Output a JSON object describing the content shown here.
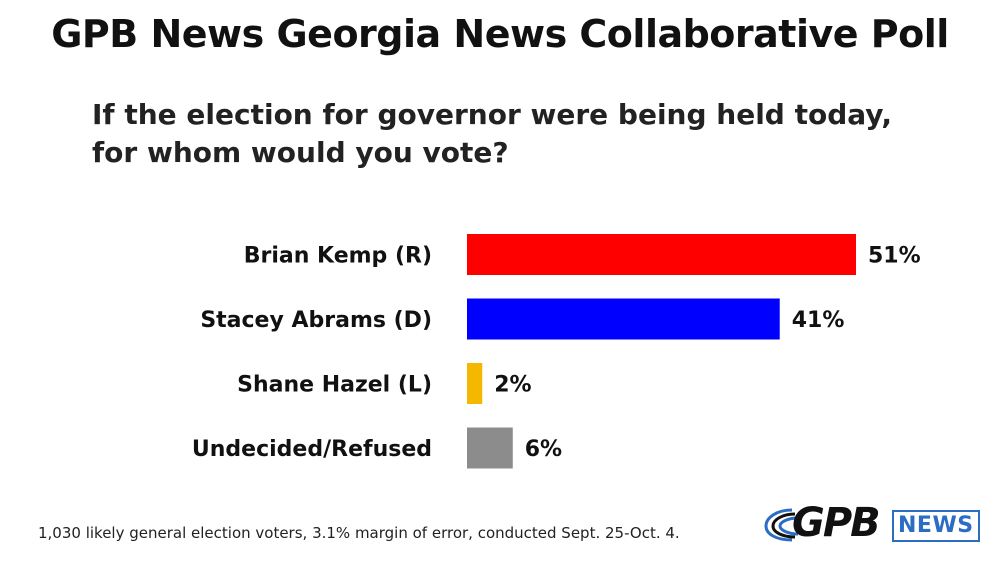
{
  "title": "GPB News Georgia News Collaborative Poll",
  "question": {
    "line1": "If the election for governor were being held today,",
    "line2": "for whom would you vote?"
  },
  "chart_data": {
    "type": "bar",
    "orientation": "horizontal",
    "categories": [
      "Brian Kemp (R)",
      "Stacey Abrams (D)",
      "Shane Hazel (L)",
      "Undecided/Refused"
    ],
    "values": [
      51,
      41,
      2,
      6
    ],
    "value_labels": [
      "51%",
      "41%",
      "2%",
      "6%"
    ],
    "colors": [
      "#ff0000",
      "#0000ff",
      "#f5b800",
      "#8c8c8c"
    ],
    "unit": "%",
    "xlim": [
      0,
      51
    ],
    "grid": false,
    "legend": "none"
  },
  "footnote": "1,030 likely general election voters, 3.1% margin of error, conducted Sept. 25-Oct. 4.",
  "logo": {
    "brand": "GPB",
    "sub": "NEWS",
    "accent": "#2b6cc4"
  }
}
